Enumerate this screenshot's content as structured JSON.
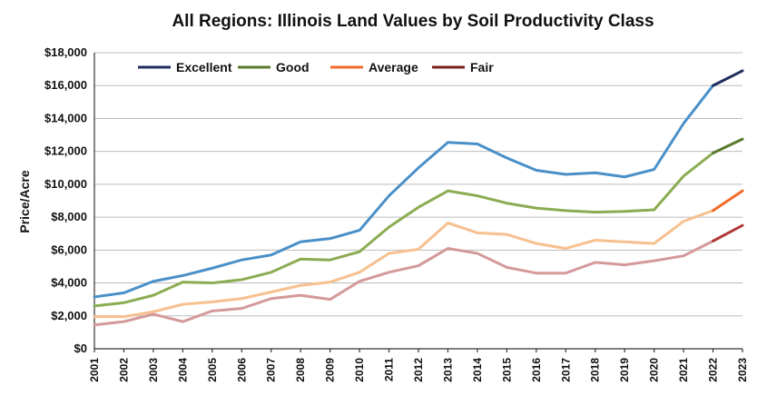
{
  "chart_data": {
    "type": "line",
    "title": "All Regions: Illinois Land Values by Soil Productivity Class",
    "xlabel": "",
    "ylabel": "Price/Acre",
    "ylim": [
      0,
      18000
    ],
    "yticks": [
      0,
      2000,
      4000,
      6000,
      8000,
      10000,
      12000,
      14000,
      16000,
      18000
    ],
    "ytick_labels": [
      "$0",
      "$2,000",
      "$4,000",
      "$6,000",
      "$8,000",
      "$10,000",
      "$12,000",
      "$14,000",
      "$16,000",
      "$18,000"
    ],
    "x": [
      "2001",
      "2002",
      "2003",
      "2004",
      "2005",
      "2006",
      "2007",
      "2008",
      "2009",
      "2010",
      "2011",
      "2012",
      "2013",
      "2014",
      "2015",
      "2016",
      "2017",
      "2018",
      "2019",
      "2020",
      "2021",
      "2022",
      "2023"
    ],
    "grid": true,
    "legend_position": "top-left",
    "legend": [
      {
        "name": "Excellent",
        "color": "#1f2d5c"
      },
      {
        "name": "Good",
        "color": "#5a7a2e"
      },
      {
        "name": "Average",
        "color": "#f26b2a"
      },
      {
        "name": "Fair",
        "color": "#7a1f1f"
      }
    ],
    "series": [
      {
        "name": "Excellent",
        "color": "#4a90c8",
        "highlight_color": "#1f2d5c",
        "values": [
          3150,
          3400,
          4100,
          4450,
          4900,
          5400,
          5700,
          6500,
          6700,
          7200,
          9300,
          11000,
          12550,
          12450,
          11600,
          10850,
          10600,
          10700,
          10450,
          10900,
          13700,
          16000,
          16900
        ]
      },
      {
        "name": "Good",
        "color": "#8bac52",
        "highlight_color": "#5a7a2e",
        "values": [
          2600,
          2800,
          3250,
          4050,
          4000,
          4200,
          4650,
          5450,
          5400,
          5900,
          7400,
          8600,
          9600,
          9300,
          8850,
          8550,
          8400,
          8300,
          8350,
          8450,
          10500,
          11900,
          12750
        ]
      },
      {
        "name": "Average",
        "color": "#f7c08f",
        "highlight_color": "#f26b2a",
        "values": [
          1950,
          1950,
          2250,
          2700,
          2850,
          3050,
          3450,
          3850,
          4050,
          4650,
          5800,
          6050,
          7650,
          7050,
          6950,
          6400,
          6100,
          6600,
          6500,
          6400,
          7750,
          8400,
          9600
        ]
      },
      {
        "name": "Fair",
        "color": "#d4999a",
        "highlight_color": "#b03a36",
        "values": [
          1450,
          1650,
          2100,
          1650,
          2300,
          2450,
          3050,
          3250,
          3000,
          4100,
          4650,
          5050,
          6100,
          5800,
          4950,
          4600,
          4600,
          5250,
          5100,
          5350,
          5650,
          6550,
          7500
        ]
      }
    ]
  }
}
